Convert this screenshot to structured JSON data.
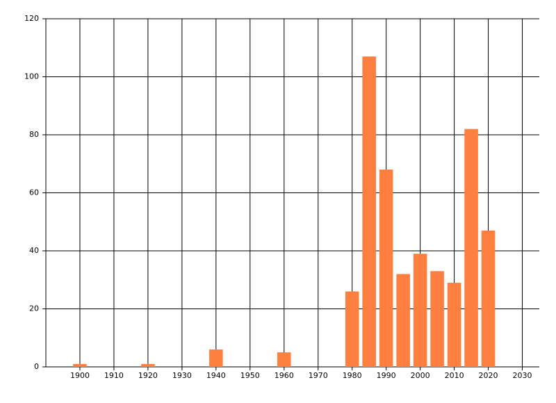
{
  "chart_data": {
    "type": "bar",
    "x": [
      1900,
      1920,
      1940,
      1960,
      1980,
      1985,
      1990,
      1995,
      2000,
      2005,
      2010,
      2015,
      2020
    ],
    "values": [
      1,
      1,
      6,
      5,
      26,
      107,
      68,
      32,
      39,
      33,
      29,
      82,
      47
    ],
    "color": "#ff7f40",
    "xlim": [
      1890,
      2035
    ],
    "xticks": [
      1900,
      1910,
      1920,
      1930,
      1940,
      1950,
      1960,
      1970,
      1980,
      1990,
      2000,
      2010,
      2020,
      2030
    ],
    "ylim": [
      0,
      120
    ],
    "yticks": [
      0,
      20,
      40,
      60,
      80,
      100,
      120
    ],
    "grid": true
  }
}
